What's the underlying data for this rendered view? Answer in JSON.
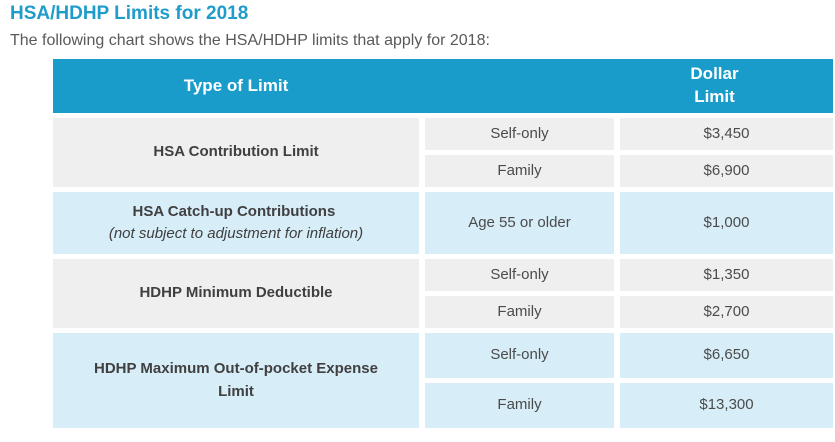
{
  "page": {
    "title": "HSA/HDHP Limits for 2018",
    "subtitle": "The following chart shows the HSA/HDHP limits that apply for 2018:"
  },
  "colors": {
    "title": "#1f9cc9",
    "header_bg": "#1a9cca",
    "header_text": "#ffffff",
    "row_gray": "#efefef",
    "row_blue": "#d7edf8",
    "cell_text": "#4b4b4b"
  },
  "table": {
    "headers": {
      "type_of_limit": "Type of Limit",
      "dollar_limit": "Dollar Limit"
    },
    "groups": [
      {
        "label": "HSA Contribution Limit",
        "note": "",
        "rows": [
          {
            "tier": "Self-only",
            "amount": "$3,450"
          },
          {
            "tier": "Family",
            "amount": "$6,900"
          }
        ]
      },
      {
        "label": "HSA Catch-up Contributions",
        "note": "(not subject to adjustment for inflation)",
        "rows": [
          {
            "tier": "Age 55 or older",
            "amount": "$1,000"
          }
        ]
      },
      {
        "label": "HDHP Minimum Deductible",
        "note": "",
        "rows": [
          {
            "tier": "Self-only",
            "amount": "$1,350"
          },
          {
            "tier": "Family",
            "amount": "$2,700"
          }
        ]
      },
      {
        "label": "HDHP Maximum Out-of-pocket Expense Limit",
        "note": "",
        "rows": [
          {
            "tier": "Self-only",
            "amount": "$6,650"
          },
          {
            "tier": "Family",
            "amount": "$13,300"
          }
        ]
      }
    ]
  }
}
